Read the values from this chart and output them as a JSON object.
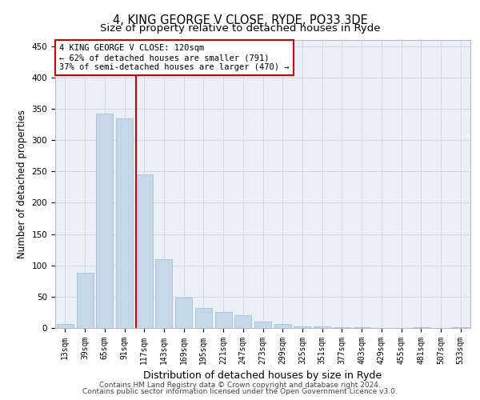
{
  "title": "4, KING GEORGE V CLOSE, RYDE, PO33 3DE",
  "subtitle": "Size of property relative to detached houses in Ryde",
  "xlabel": "Distribution of detached houses by size in Ryde",
  "ylabel": "Number of detached properties",
  "footer_line1": "Contains HM Land Registry data © Crown copyright and database right 2024.",
  "footer_line2": "Contains public sector information licensed under the Open Government Licence v3.0.",
  "bar_labels": [
    "13sqm",
    "39sqm",
    "65sqm",
    "91sqm",
    "117sqm",
    "143sqm",
    "169sqm",
    "195sqm",
    "221sqm",
    "247sqm",
    "273sqm",
    "299sqm",
    "325sqm",
    "351sqm",
    "377sqm",
    "403sqm",
    "429sqm",
    "455sqm",
    "481sqm",
    "507sqm",
    "533sqm"
  ],
  "bar_values": [
    6,
    88,
    342,
    335,
    245,
    110,
    48,
    32,
    25,
    20,
    10,
    6,
    3,
    2,
    1,
    1,
    0,
    0,
    1,
    0,
    1
  ],
  "bar_color": "#c5d8e8",
  "bar_edge_color": "#a0b8cc",
  "grid_color": "#d0d8e8",
  "background_color": "#eaf0f8",
  "annotation_text": "4 KING GEORGE V CLOSE: 120sqm\n← 62% of detached houses are smaller (791)\n37% of semi-detached houses are larger (470) →",
  "annotation_box_color": "#ffffff",
  "annotation_box_edge_color": "#cc0000",
  "vline_color": "#cc0000",
  "vline_x": 3.575,
  "ylim": [
    0,
    460
  ],
  "title_fontsize": 10.5,
  "subtitle_fontsize": 9.5,
  "tick_fontsize": 7,
  "ylabel_fontsize": 8.5,
  "xlabel_fontsize": 9,
  "annotation_fontsize": 7.5,
  "footer_fontsize": 6.5
}
